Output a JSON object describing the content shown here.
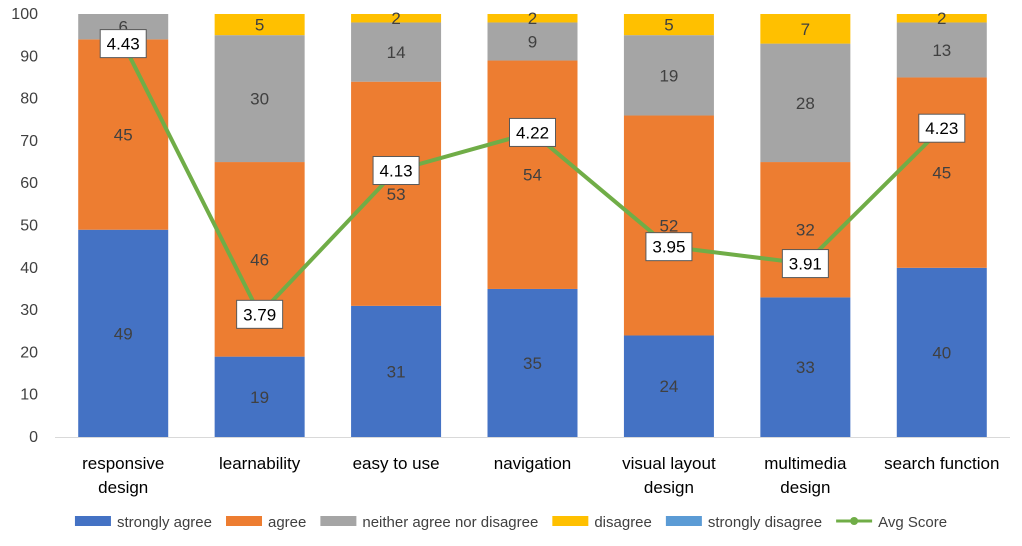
{
  "chart_data": {
    "type": "bar",
    "stacked": true,
    "title": "",
    "xlabel": "",
    "ylabel": "",
    "ylim": [
      0,
      100
    ],
    "yticks": [
      0,
      10,
      20,
      30,
      40,
      50,
      60,
      70,
      80,
      90,
      100
    ],
    "grid": false,
    "legend_position": "bottom",
    "categories": [
      [
        "responsive",
        "design"
      ],
      [
        "learnability"
      ],
      [
        "easy to use"
      ],
      [
        "navigation"
      ],
      [
        "visual layout",
        "design"
      ],
      [
        "multimedia",
        "design"
      ],
      [
        "search function"
      ]
    ],
    "series": [
      {
        "name": "strongly agree",
        "color": "#4472C4",
        "values": [
          49,
          19,
          31,
          35,
          24,
          33,
          40
        ]
      },
      {
        "name": "agree",
        "color": "#ED7D31",
        "values": [
          45,
          46,
          53,
          54,
          52,
          32,
          45
        ]
      },
      {
        "name": "neither agree nor disagree",
        "color": "#A5A5A5",
        "values": [
          6,
          30,
          14,
          9,
          19,
          28,
          13
        ]
      },
      {
        "name": "disagree",
        "color": "#FFC000",
        "values": [
          0,
          5,
          2,
          2,
          5,
          7,
          2
        ]
      },
      {
        "name": "strongly disagree",
        "color": "#5B9BD5",
        "values": [
          0,
          0,
          0,
          0,
          0,
          0,
          0
        ]
      }
    ],
    "line_series": {
      "name": "Avg Score",
      "color": "#70AD47",
      "values": [
        4.43,
        3.79,
        4.13,
        4.22,
        3.95,
        3.91,
        4.23
      ],
      "labels": [
        "4.43",
        "3.79",
        "4.13",
        "4.22",
        "3.95",
        "3.91",
        "4.23"
      ]
    }
  }
}
